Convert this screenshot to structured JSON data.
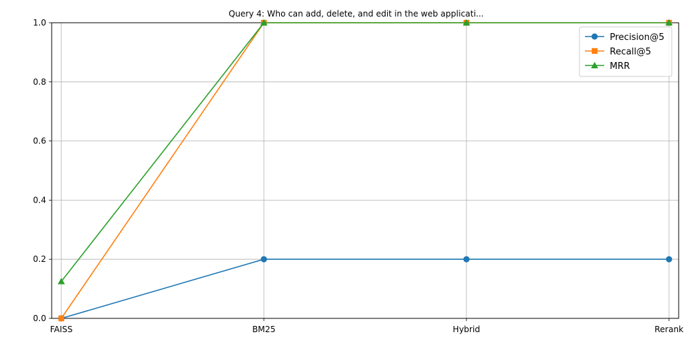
{
  "chart_data": {
    "type": "line",
    "title": "Query 4: Who can add, delete, and edit in the web applicati...",
    "xlabel": "",
    "ylabel": "",
    "categories": [
      "FAISS",
      "BM25",
      "Hybrid",
      "Rerank"
    ],
    "ylim": [
      0,
      1.0
    ],
    "yticks": [
      "0.0",
      "0.2",
      "0.4",
      "0.6",
      "0.8",
      "1.0"
    ],
    "grid": true,
    "legend_position": "top-right",
    "series": [
      {
        "name": "Precision@5",
        "values": [
          0.0,
          0.2,
          0.2,
          0.2
        ],
        "color": "#1f77b4",
        "marker": "circle"
      },
      {
        "name": "Recall@5",
        "values": [
          0.0,
          1.0,
          1.0,
          1.0
        ],
        "color": "#ff7f0e",
        "marker": "square"
      },
      {
        "name": "MRR",
        "values": [
          0.125,
          1.0,
          1.0,
          1.0
        ],
        "color": "#2ca02c",
        "marker": "triangle"
      }
    ]
  }
}
